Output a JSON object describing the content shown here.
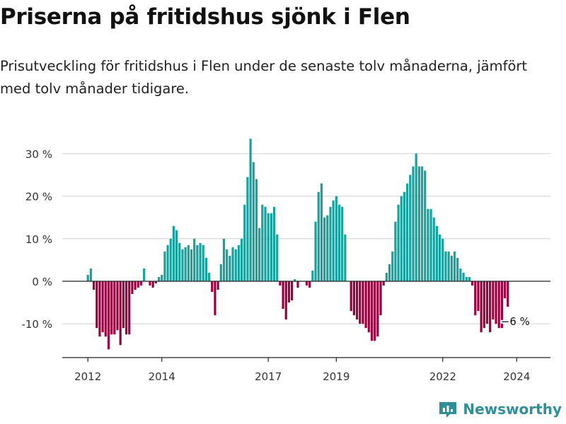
{
  "title": "Priserna på fritidshus sjönk i Flen",
  "subtitle": "Prisutveckling för fritidshus i Flen under de senaste tolv månaderna, jämfört med tolv månader tidigare.",
  "brand": "Newsworthy",
  "colors": {
    "positive": "#17a29e",
    "negative": "#9a0040",
    "grid": "#d0d0d0",
    "axis": "#222222",
    "brand": "#2f8f95"
  },
  "chart_data": {
    "type": "bar",
    "title": "Priserna på fritidshus sjönk i Flen",
    "xlabel": "",
    "ylabel": "",
    "ylim": [
      -17,
      35
    ],
    "yticks": [
      -10,
      0,
      10,
      20,
      30
    ],
    "ytick_labels": [
      "-10 %",
      "0 %",
      "10 %",
      "20 %",
      "30 %"
    ],
    "xticks": [
      {
        "label": "2012",
        "index": 0
      },
      {
        "label": "2014",
        "index": 25
      },
      {
        "label": "2017",
        "index": 61
      },
      {
        "label": "2019",
        "index": 84
      },
      {
        "label": "2022",
        "index": 120
      },
      {
        "label": "2024",
        "index": 145
      }
    ],
    "end_label": "−6 %",
    "x_start": "2011-11",
    "values": [
      1.5,
      3,
      -2,
      -11,
      -13,
      -12,
      -13,
      -16,
      -12.5,
      -12.5,
      -11.5,
      -15,
      -11,
      -12.5,
      -12.5,
      -3,
      -2,
      -1.5,
      -1,
      3,
      0,
      -1,
      -1.5,
      -0.5,
      1,
      1.5,
      7,
      8.5,
      10,
      13,
      12,
      9,
      7.5,
      8,
      8.5,
      7.5,
      10,
      8.5,
      9,
      8.5,
      5.5,
      2,
      -2.5,
      -8,
      -2,
      4,
      10,
      7.5,
      6,
      8,
      7.5,
      8.5,
      10,
      18,
      24.5,
      33.5,
      28,
      24,
      12.5,
      18,
      17.5,
      16,
      16,
      17.5,
      11,
      -1,
      -6.5,
      -9,
      -5,
      -4.5,
      0.5,
      -1.5,
      0,
      0,
      -1,
      -1.5,
      2.5,
      14,
      21,
      23,
      15,
      15.5,
      17.5,
      19,
      20,
      18,
      17.5,
      11,
      0,
      -7,
      -8,
      -9,
      -10,
      -10,
      -11,
      -12,
      -14,
      -14,
      -13,
      -8,
      -1,
      2,
      4,
      7,
      14,
      18,
      20,
      21,
      23,
      25,
      27,
      30,
      27,
      27,
      26,
      17,
      17,
      15,
      13,
      11,
      10,
      7,
      7,
      6,
      7,
      5.5,
      3,
      2,
      1,
      1,
      -1,
      -8,
      -7,
      -12,
      -11,
      -10,
      -12,
      -9,
      -10,
      -11,
      -11,
      -4,
      -6
    ]
  }
}
